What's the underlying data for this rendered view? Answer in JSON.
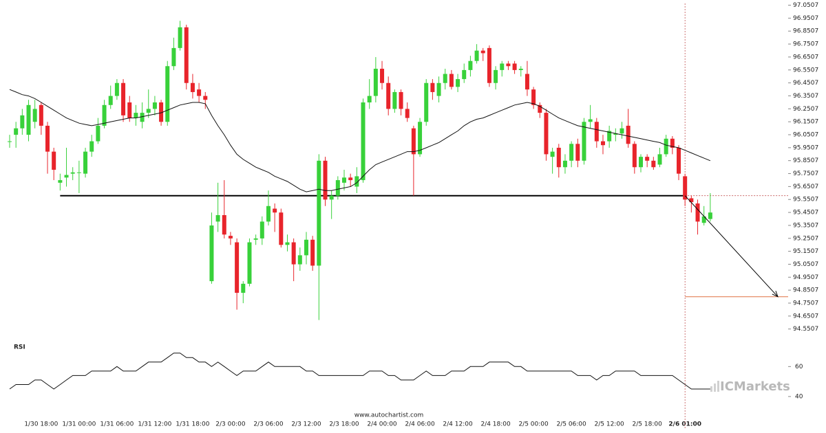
{
  "chart_data": [
    {
      "type": "candlestick",
      "categories": [
        null,
        null,
        null,
        null,
        null,
        "1/30 18:00",
        null,
        null,
        null,
        null,
        null,
        "1/31 00:00",
        null,
        null,
        null,
        null,
        null,
        "1/31 06:00",
        null,
        null,
        null,
        null,
        null,
        "1/31 12:00",
        null,
        null,
        null,
        null,
        null,
        "1/31 18:00",
        null,
        null,
        null,
        null,
        null,
        "2/3 00:00",
        null,
        null,
        null,
        null,
        null,
        "2/3 06:00",
        null,
        null,
        null,
        null,
        null,
        "2/3 12:00",
        null,
        null,
        null,
        null,
        null,
        "2/3 18:00",
        null,
        null,
        null,
        null,
        null,
        "2/4 00:00",
        null,
        null,
        null,
        null,
        null,
        "2/4 06:00",
        null,
        null,
        null,
        null,
        null,
        "2/4 12:00",
        null,
        null,
        null,
        null,
        null,
        "2/4 18:00",
        null,
        null,
        null,
        null,
        null,
        "2/5 00:00",
        null,
        null,
        null,
        null,
        null,
        "2/5 06:00",
        null,
        null,
        null,
        null,
        null,
        "2/5 12:00",
        null,
        null,
        null,
        null,
        null,
        "2/5 18:00",
        null,
        null,
        null,
        null,
        null,
        "2/6 01:00",
        null,
        null,
        null,
        null
      ],
      "open": [
        96.0,
        96.05,
        96.1,
        96.05,
        96.15,
        96.28,
        96.12,
        95.92,
        95.68,
        95.72,
        95.75,
        95.76,
        95.75,
        95.92,
        96.0,
        96.12,
        96.28,
        96.35,
        96.45,
        96.3,
        96.18,
        96.15,
        96.22,
        96.25,
        96.3,
        96.15,
        96.58,
        96.72,
        96.88,
        96.45,
        96.4,
        96.35,
        94.92,
        95.38,
        95.43,
        95.27,
        95.22,
        94.83,
        94.9,
        95.24,
        95.25,
        95.38,
        95.48,
        95.45,
        95.2,
        95.22,
        95.05,
        95.12,
        95.24,
        95.04,
        95.85,
        95.55,
        95.58,
        95.68,
        95.72,
        95.65,
        95.7,
        96.3,
        96.35,
        96.56,
        96.45,
        96.25,
        96.38,
        96.25,
        96.1,
        95.9,
        96.15,
        96.45,
        96.35,
        96.45,
        96.52,
        96.42,
        96.48,
        96.55,
        96.62,
        96.7,
        96.72,
        96.45,
        96.55,
        96.6,
        96.6,
        96.55,
        96.52,
        96.4,
        96.28,
        96.22,
        95.88,
        95.95,
        95.8,
        95.85,
        95.98,
        95.85,
        96.15,
        96.15,
        96.0,
        96.0,
        96.05,
        96.06,
        96.12,
        95.98,
        95.8,
        95.88,
        95.85,
        95.82,
        95.9,
        96.02,
        95.95,
        95.73,
        95.56,
        95.52,
        95.37,
        95.4
      ],
      "high": [
        96.05,
        96.15,
        96.25,
        96.32,
        96.32,
        96.3,
        96.15,
        95.95,
        95.75,
        95.95,
        95.8,
        95.85,
        95.95,
        96.05,
        96.18,
        96.32,
        96.43,
        96.48,
        96.48,
        96.35,
        96.28,
        96.3,
        96.4,
        96.35,
        96.32,
        96.62,
        96.8,
        96.93,
        96.9,
        96.52,
        96.45,
        96.38,
        95.45,
        95.68,
        95.7,
        95.3,
        95.25,
        94.92,
        95.25,
        95.28,
        95.42,
        95.62,
        95.52,
        95.48,
        95.28,
        95.25,
        95.18,
        95.3,
        95.27,
        95.9,
        95.88,
        95.62,
        95.73,
        95.78,
        95.75,
        95.8,
        96.33,
        96.48,
        96.65,
        96.62,
        96.5,
        96.4,
        96.4,
        96.3,
        96.12,
        96.18,
        96.48,
        96.48,
        96.5,
        96.56,
        96.55,
        96.52,
        96.6,
        96.66,
        96.75,
        96.72,
        96.74,
        96.58,
        96.62,
        96.62,
        96.62,
        96.58,
        96.62,
        96.42,
        96.3,
        96.25,
        95.95,
        95.98,
        95.9,
        96.0,
        96.02,
        96.18,
        96.28,
        96.18,
        96.05,
        96.12,
        96.1,
        96.15,
        96.25,
        96.0,
        95.9,
        95.9,
        95.88,
        95.95,
        96.05,
        96.04,
        95.97,
        95.75,
        95.58,
        95.55,
        95.5,
        95.6
      ],
      "low": [
        95.95,
        95.95,
        96.05,
        96.0,
        96.1,
        96.05,
        95.75,
        95.7,
        95.62,
        95.65,
        95.7,
        95.6,
        95.72,
        95.88,
        95.98,
        96.1,
        96.25,
        96.32,
        96.15,
        96.15,
        96.12,
        96.1,
        96.18,
        96.2,
        96.12,
        96.12,
        96.55,
        96.7,
        96.4,
        96.33,
        96.3,
        96.25,
        94.9,
        95.3,
        95.25,
        95.2,
        94.7,
        94.75,
        94.88,
        95.2,
        95.2,
        95.35,
        95.3,
        95.18,
        95.15,
        94.92,
        95.0,
        95.05,
        95.0,
        94.62,
        95.5,
        95.4,
        95.55,
        95.62,
        95.65,
        95.6,
        95.68,
        96.25,
        96.3,
        96.4,
        96.2,
        96.22,
        96.2,
        96.15,
        95.58,
        95.88,
        96.12,
        96.32,
        96.3,
        96.4,
        96.4,
        96.38,
        96.45,
        96.5,
        96.6,
        96.62,
        96.42,
        96.4,
        96.5,
        96.55,
        96.52,
        96.5,
        96.35,
        96.25,
        96.18,
        95.85,
        95.75,
        95.72,
        95.75,
        95.8,
        95.8,
        95.82,
        96.1,
        95.95,
        95.9,
        95.95,
        96.0,
        96.02,
        95.95,
        95.75,
        95.76,
        95.8,
        95.78,
        95.8,
        95.88,
        95.9,
        95.7,
        95.5,
        95.45,
        95.28,
        95.35,
        95.38
      ],
      "close": [
        96.0,
        96.1,
        96.2,
        96.28,
        96.25,
        96.12,
        95.92,
        95.78,
        95.7,
        95.74,
        95.76,
        95.76,
        95.92,
        96.0,
        96.12,
        96.28,
        96.35,
        96.45,
        96.2,
        96.18,
        96.22,
        96.22,
        96.25,
        96.3,
        96.15,
        96.58,
        96.72,
        96.88,
        96.45,
        96.38,
        96.35,
        96.32,
        95.35,
        95.43,
        95.28,
        95.25,
        94.83,
        94.9,
        95.22,
        95.25,
        95.38,
        95.5,
        95.45,
        95.2,
        95.22,
        95.05,
        95.12,
        95.24,
        95.04,
        95.85,
        95.55,
        95.58,
        95.7,
        95.72,
        95.7,
        95.73,
        96.3,
        96.35,
        96.56,
        96.45,
        96.25,
        96.38,
        96.25,
        96.18,
        95.9,
        96.15,
        96.45,
        96.38,
        96.45,
        96.52,
        96.42,
        96.48,
        96.55,
        96.62,
        96.7,
        96.68,
        96.45,
        96.55,
        96.6,
        96.58,
        96.55,
        96.56,
        96.4,
        96.28,
        96.22,
        95.9,
        95.92,
        95.8,
        95.85,
        95.98,
        95.85,
        96.15,
        96.17,
        96.0,
        95.97,
        96.08,
        96.06,
        96.1,
        95.98,
        95.8,
        95.88,
        95.85,
        95.8,
        95.9,
        96.02,
        95.95,
        95.75,
        95.55,
        95.53,
        95.38,
        95.42,
        95.45
      ],
      "moving_average": [
        96.4,
        96.38,
        96.36,
        96.35,
        96.33,
        96.3,
        96.27,
        96.24,
        96.21,
        96.18,
        96.16,
        96.14,
        96.13,
        96.12,
        96.13,
        96.14,
        96.15,
        96.16,
        96.17,
        96.18,
        96.18,
        96.19,
        96.2,
        96.21,
        96.22,
        96.24,
        96.26,
        96.28,
        96.29,
        96.3,
        96.3,
        96.29,
        96.2,
        96.12,
        96.05,
        95.97,
        95.9,
        95.86,
        95.83,
        95.8,
        95.78,
        95.76,
        95.73,
        95.71,
        95.69,
        95.66,
        95.63,
        95.61,
        95.62,
        95.63,
        95.62,
        95.62,
        95.63,
        95.64,
        95.65,
        95.68,
        95.73,
        95.78,
        95.82,
        95.84,
        95.86,
        95.88,
        95.9,
        95.92,
        95.92,
        95.93,
        95.95,
        95.97,
        95.99,
        96.02,
        96.05,
        96.08,
        96.12,
        96.15,
        96.17,
        96.18,
        96.2,
        96.22,
        96.24,
        96.26,
        96.28,
        96.29,
        96.3,
        96.29,
        96.27,
        96.24,
        96.21,
        96.18,
        96.16,
        96.14,
        96.12,
        96.11,
        96.1,
        96.09,
        96.08,
        96.07,
        96.06,
        96.05,
        96.04,
        96.03,
        96.02,
        96.01,
        96.0,
        95.99,
        95.97,
        95.96,
        95.95,
        95.93,
        95.91,
        95.89,
        95.87,
        95.85
      ],
      "up_color": "#38d13a",
      "down_color": "#e8242b",
      "ma_color": "#111111",
      "ylim": [
        94.4907,
        97.0907
      ],
      "yticks": [
        97.0507,
        96.9507,
        96.8507,
        96.7507,
        96.6507,
        96.5507,
        96.4507,
        96.3507,
        96.2507,
        96.1507,
        96.0507,
        95.9507,
        95.8507,
        95.7507,
        95.6507,
        95.5507,
        95.4507,
        95.3507,
        95.2507,
        95.1507,
        95.0507,
        94.9507,
        94.8507,
        94.7507,
        94.6507,
        94.5507
      ],
      "support_level": 95.58,
      "target_level": 94.8,
      "target_color": "#e07040"
    },
    {
      "type": "line",
      "title": "RSI",
      "values": [
        45,
        48,
        48,
        48,
        51,
        51,
        48,
        45,
        48,
        51,
        54,
        54,
        54,
        57,
        57,
        57,
        57,
        60,
        57,
        57,
        57,
        60,
        63,
        63,
        63,
        66,
        69,
        69,
        66,
        66,
        63,
        63,
        60,
        63,
        60,
        57,
        54,
        57,
        57,
        57,
        60,
        63,
        60,
        60,
        60,
        60,
        60,
        57,
        57,
        54,
        54,
        54,
        54,
        54,
        54,
        54,
        54,
        57,
        57,
        57,
        54,
        54,
        51,
        51,
        51,
        54,
        57,
        54,
        54,
        54,
        57,
        57,
        57,
        60,
        60,
        60,
        63,
        63,
        63,
        63,
        60,
        60,
        57,
        57,
        57,
        57,
        57,
        57,
        57,
        57,
        54,
        54,
        54,
        51,
        54,
        54,
        57,
        57,
        57,
        57,
        54,
        54,
        54,
        54,
        54,
        54,
        51,
        48,
        45,
        45,
        45,
        45
      ],
      "color": "#111111",
      "ylim": [
        34,
        73
      ],
      "yticks": [
        40,
        60
      ]
    }
  ],
  "footer": "www.autochartist.com",
  "watermark": "ICMarkets"
}
